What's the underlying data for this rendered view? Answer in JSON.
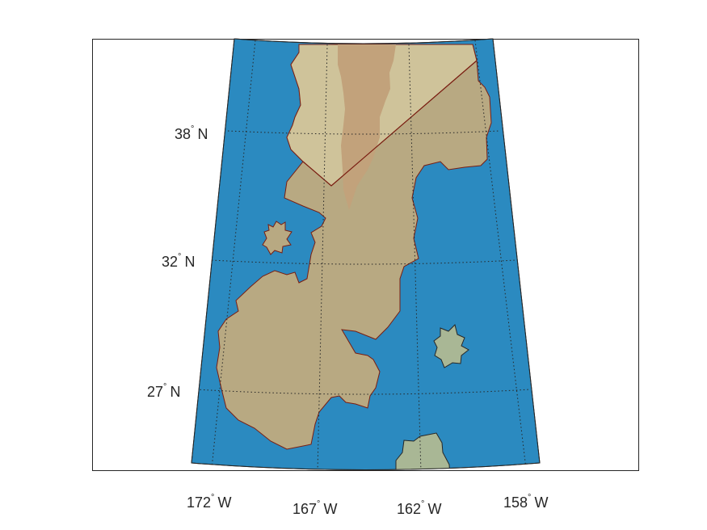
{
  "map": {
    "colors": {
      "ocean": "#2B8AC0",
      "land": "#B8A982",
      "highland": "#CFC39A",
      "ridge": "#C2A27B",
      "island": "#A9B795",
      "coastline": "#7A1E12",
      "graticule": "#262626"
    },
    "latitude_labels": [
      {
        "value": "38",
        "suffix": "N"
      },
      {
        "value": "32",
        "suffix": "N"
      },
      {
        "value": "27",
        "suffix": "N"
      }
    ],
    "longitude_labels": [
      {
        "value": "172",
        "suffix": "W"
      },
      {
        "value": "167",
        "suffix": "W"
      },
      {
        "value": "162",
        "suffix": "W"
      },
      {
        "value": "158",
        "suffix": "W"
      }
    ],
    "degree_symbol": "°"
  }
}
